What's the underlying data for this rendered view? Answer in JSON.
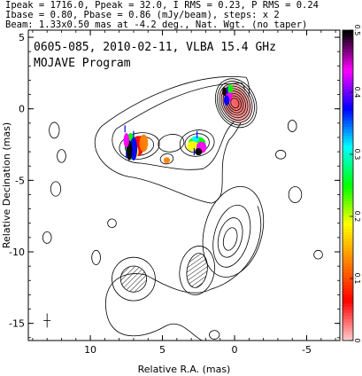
{
  "header": {
    "line1": "Ipeak = 1716.0, Ppeak = 32.0, I RMS = 0.23, P RMS = 0.24",
    "line2": "Ibase = 0.80, Pbase = 0.86 (mJy/beam), steps: x 2",
    "line3": "Beam: 1.33x0.50 mas at -4.2 deg., Nat. Wgt. (no taper)"
  },
  "chart_data": {
    "type": "contour",
    "title": "0605-085, 2010-02-11, VLBA 15.4 GHz",
    "subtitle": "MOJAVE Program",
    "xlabel": "Relative R.A. (mas)",
    "ylabel": "Relative Decination (mas)",
    "xlim": [
      14.3,
      -7.3
    ],
    "ylim": [
      -16.2,
      5.5
    ],
    "x_ticks": [
      10,
      5,
      0,
      -5
    ],
    "x_tick_labels": [
      "10",
      "5",
      "0",
      "-5"
    ],
    "y_ticks": [
      5,
      0,
      -5,
      -10,
      -15
    ],
    "y_tick_labels": [
      "5",
      "0",
      "-5",
      "-10",
      "-15"
    ],
    "colorbar": {
      "range": [
        0,
        0.5
      ],
      "ticks": [
        0,
        0.1,
        0.2,
        0.3,
        0.4,
        0.5
      ],
      "tick_labels": [
        "0",
        "0.1",
        "0.2",
        "0.3",
        "0.4",
        "0.5"
      ],
      "colors": [
        "#ffc8c8",
        "#ff0000",
        "#ff8000",
        "#ffff00",
        "#00ff00",
        "#00ffff",
        "#0000ff",
        "#ff00ff",
        "#000000"
      ]
    },
    "contour_base_mJy": 0.8,
    "contour_step": 2,
    "peak_position": [
      0.0,
      0.2
    ],
    "jet_components": [
      {
        "x": 0.2,
        "y": 0.5,
        "note": "core"
      },
      {
        "x": 2.6,
        "y": -2.3
      },
      {
        "x": 6.4,
        "y": -2.6
      },
      {
        "x": 7.1,
        "y": -2.8
      }
    ],
    "polarization_patches": [
      {
        "x": 0.4,
        "y": 1.0,
        "fraction": 0.4
      },
      {
        "x": 6.6,
        "y": -2.5,
        "fraction": 0.12
      },
      {
        "x": 7.2,
        "y": -2.7,
        "fraction": 0.42
      },
      {
        "x": 2.6,
        "y": -2.4,
        "fraction": 0.33
      },
      {
        "x": 4.7,
        "y": -3.6,
        "fraction": 0.09
      }
    ],
    "beam": {
      "major_mas": 1.33,
      "minor_mas": 0.5,
      "pa_deg": -4.2
    },
    "grid": false
  }
}
